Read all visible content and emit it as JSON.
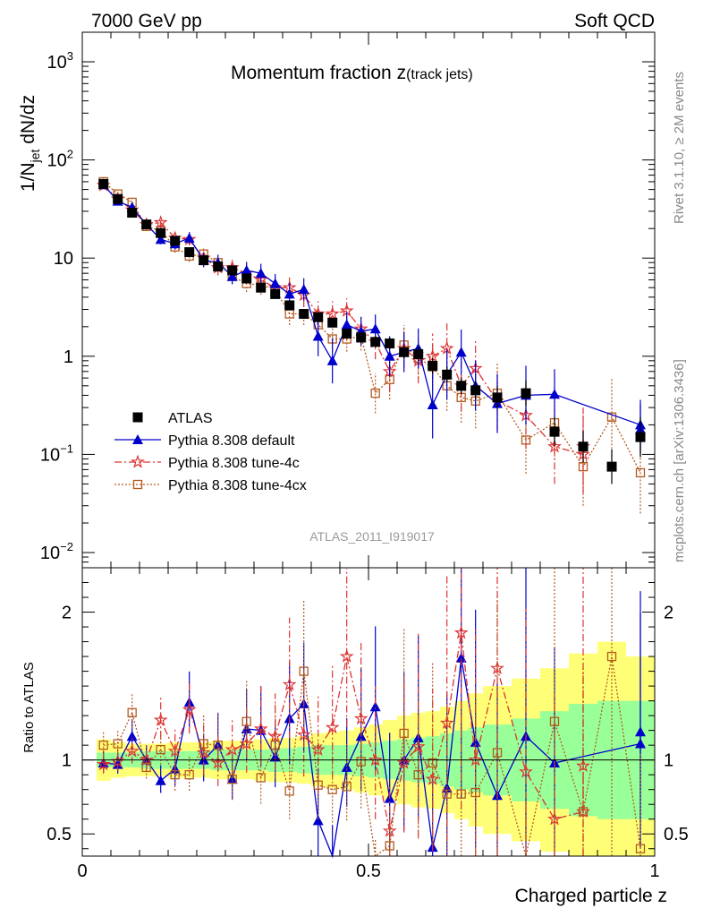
{
  "header": {
    "left": "7000 GeV pp",
    "right": "Soft QCD"
  },
  "side_labels": {
    "upper": "Rivet 3.1.10, ≥ 2M events",
    "lower": "mcplots.cern.ch [arXiv:1306.3436]"
  },
  "analysis_id": "ATLAS_2011_I919017",
  "colors": {
    "atlas": "#000000",
    "default": "#0000cc",
    "tune4c": "#dd3333",
    "tune4cx": "#b35a1f",
    "band_inner": "#99ff99",
    "band_outer": "#ffff77"
  },
  "chart_data": [
    {
      "type": "scatter",
      "title_main": "Momentum fraction z",
      "title_sub": "(track jets)",
      "ylabel_main": "1/N",
      "ylabel_sub": "jet",
      "ylabel_tail": " dN/dz",
      "yscale": "log",
      "ylim": [
        0.007,
        2000
      ],
      "xlim": [
        0,
        1
      ],
      "ytick_labels": [
        {
          "value": 1000,
          "base": "10",
          "exp": "3"
        },
        {
          "value": 100,
          "base": "10",
          "exp": "2"
        },
        {
          "value": 10,
          "base": "10",
          "exp": ""
        },
        {
          "value": 1,
          "base": "1",
          "exp": ""
        },
        {
          "value": 0.1,
          "base": "10",
          "exp": "−1"
        },
        {
          "value": 0.01,
          "base": "10",
          "exp": "−2"
        }
      ],
      "legend_position": "bottom-left",
      "x": [
        0.037,
        0.062,
        0.087,
        0.112,
        0.137,
        0.162,
        0.187,
        0.212,
        0.237,
        0.262,
        0.287,
        0.312,
        0.337,
        0.362,
        0.387,
        0.412,
        0.437,
        0.462,
        0.487,
        0.512,
        0.537,
        0.562,
        0.587,
        0.612,
        0.637,
        0.662,
        0.687,
        0.725,
        0.775,
        0.825,
        0.875,
        0.925,
        0.975
      ],
      "series": [
        {
          "name": "ATLAS",
          "key": "atlas",
          "marker": "square",
          "values": [
            57,
            40,
            29,
            22,
            18,
            15,
            11.5,
            9.5,
            8.2,
            7.5,
            6.2,
            5.0,
            4.3,
            3.3,
            2.7,
            2.5,
            2.2,
            1.7,
            1.55,
            1.4,
            1.35,
            1.1,
            1.05,
            0.8,
            0.65,
            0.5,
            0.45,
            0.38,
            0.42,
            0.17,
            0.12,
            0.075,
            0.15
          ],
          "err_factor": [
            1.05,
            1.05,
            1.05,
            1.05,
            1.05,
            1.05,
            1.06,
            1.06,
            1.07,
            1.07,
            1.08,
            1.08,
            1.09,
            1.1,
            1.1,
            1.1,
            1.12,
            1.12,
            1.14,
            1.14,
            1.15,
            1.16,
            1.18,
            1.2,
            1.2,
            1.22,
            1.25,
            1.3,
            1.35,
            1.4,
            1.45,
            1.5,
            1.6
          ]
        },
        {
          "name": "Pythia 8.308 default",
          "key": "default",
          "marker": "triangle",
          "values": [
            56,
            38,
            33,
            22,
            15.5,
            14,
            16,
            9.5,
            9,
            6.5,
            7.5,
            7,
            5.5,
            4.3,
            4.8,
            1.6,
            0.9,
            2.1,
            1.8,
            1.9,
            1.0,
            1.1,
            1.2,
            0.32,
            0.65,
            1.1,
            0.5,
            0.33,
            0.4,
            0.41,
            0.2,
            0.18
          ],
          "x_override": [
            0.037,
            0.062,
            0.087,
            0.112,
            0.137,
            0.162,
            0.187,
            0.212,
            0.237,
            0.262,
            0.287,
            0.312,
            0.337,
            0.362,
            0.387,
            0.412,
            0.437,
            0.462,
            0.487,
            0.512,
            0.537,
            0.562,
            0.587,
            0.612,
            0.637,
            0.662,
            0.687,
            0.725,
            0.775,
            0.825,
            0.975,
            0.975
          ],
          "err_factor": [
            1.08,
            1.08,
            1.1,
            1.1,
            1.12,
            1.15,
            1.15,
            1.18,
            1.2,
            1.2,
            1.22,
            1.25,
            1.25,
            1.3,
            1.3,
            1.6,
            1.7,
            1.35,
            1.4,
            1.4,
            1.6,
            1.6,
            1.6,
            2.2,
            1.8,
            1.7,
            1.8,
            2.0,
            2.0,
            1.8,
            1.8,
            1.8
          ]
        },
        {
          "name": "Pythia 8.308 tune-4c",
          "key": "tune4c",
          "marker": "star",
          "values": [
            55,
            40,
            31,
            22,
            23,
            16,
            15.5,
            10,
            8,
            8,
            7,
            6,
            5,
            5,
            4.2,
            2.7,
            2.7,
            2.9,
            1.9,
            1.4,
            0.7,
            1.2,
            0.9,
            1.0,
            1.2,
            0.5,
            0.75,
            0.35,
            0.25,
            0.12,
            0.1,
            0.12
          ],
          "x_override": [
            0.037,
            0.062,
            0.087,
            0.112,
            0.137,
            0.162,
            0.187,
            0.212,
            0.237,
            0.262,
            0.287,
            0.312,
            0.337,
            0.362,
            0.387,
            0.412,
            0.437,
            0.462,
            0.487,
            0.512,
            0.537,
            0.562,
            0.587,
            0.612,
            0.637,
            0.662,
            0.687,
            0.725,
            0.775,
            0.825,
            0.875,
            0.875
          ],
          "err_factor": [
            1.08,
            1.08,
            1.1,
            1.1,
            1.12,
            1.15,
            1.15,
            1.18,
            1.2,
            1.2,
            1.22,
            1.25,
            1.25,
            1.3,
            1.3,
            1.35,
            1.35,
            1.35,
            1.4,
            1.5,
            1.6,
            1.6,
            1.7,
            1.7,
            1.8,
            1.8,
            1.9,
            2.0,
            2.2,
            2.4,
            2.5,
            2.5
          ]
        },
        {
          "name": "Pythia 8.308 tune-4cx",
          "key": "tune4cx",
          "marker": "open-square",
          "values": [
            60,
            45,
            37,
            21,
            19,
            13,
            10.5,
            11,
            9,
            6.5,
            5.5,
            5.3,
            4.8,
            2.7,
            2.7,
            2.1,
            1.5,
            1.5,
            1.6,
            0.42,
            0.58,
            1.3,
            0.95,
            0.78,
            0.5,
            0.38,
            0.35,
            0.42,
            0.14,
            0.21,
            0.075,
            0.24,
            0.065
          ],
          "err_factor": [
            1.08,
            1.08,
            1.1,
            1.1,
            1.12,
            1.15,
            1.15,
            1.18,
            1.2,
            1.2,
            1.22,
            1.25,
            1.25,
            1.3,
            1.3,
            1.35,
            1.35,
            1.35,
            1.4,
            1.6,
            1.6,
            1.6,
            1.6,
            1.7,
            1.8,
            1.8,
            1.9,
            2.0,
            2.2,
            2.4,
            2.5,
            2.5,
            2.6
          ]
        }
      ]
    },
    {
      "type": "scatter",
      "ylabel": "Ratio to ATLAS",
      "xlabel": "Charged particle z",
      "ylim": [
        0.35,
        2.3
      ],
      "xlim": [
        0,
        1
      ],
      "yticks": [
        0.5,
        1,
        2
      ],
      "ytick_labels": [
        "0.5",
        "1",
        "2"
      ],
      "xticks": [
        0,
        0.5,
        1
      ],
      "xtick_labels": [
        "0",
        "0.5",
        "1"
      ],
      "band_edges": [
        0.025,
        0.05,
        0.075,
        0.1,
        0.125,
        0.15,
        0.175,
        0.2,
        0.225,
        0.25,
        0.275,
        0.3,
        0.325,
        0.35,
        0.375,
        0.4,
        0.425,
        0.45,
        0.475,
        0.5,
        0.525,
        0.55,
        0.575,
        0.6,
        0.625,
        0.65,
        0.675,
        0.7,
        0.75,
        0.8,
        0.85,
        0.9,
        0.95,
        1.0
      ],
      "band_inner": [
        0.05,
        0.05,
        0.05,
        0.06,
        0.06,
        0.06,
        0.06,
        0.06,
        0.07,
        0.07,
        0.07,
        0.07,
        0.08,
        0.08,
        0.09,
        0.1,
        0.1,
        0.1,
        0.11,
        0.12,
        0.13,
        0.14,
        0.15,
        0.16,
        0.18,
        0.2,
        0.22,
        0.24,
        0.28,
        0.33,
        0.38,
        0.4,
        0.4
      ],
      "band_outer": [
        0.14,
        0.12,
        0.11,
        0.11,
        0.11,
        0.12,
        0.12,
        0.12,
        0.13,
        0.13,
        0.13,
        0.14,
        0.15,
        0.15,
        0.16,
        0.18,
        0.19,
        0.2,
        0.22,
        0.24,
        0.27,
        0.3,
        0.32,
        0.33,
        0.36,
        0.4,
        0.45,
        0.5,
        0.55,
        0.62,
        0.72,
        0.8,
        0.7
      ],
      "series": [
        {
          "key": "default",
          "values": [
            0.98,
            0.97,
            1.16,
            1.0,
            0.86,
            0.94,
            1.39,
            1.0,
            1.1,
            0.87,
            1.21,
            1.2,
            1.02,
            1.28,
            1.38,
            0.59,
            0.33,
            0.95,
            1.16,
            1.36,
            0.74,
            1.0,
            1.15,
            0.41,
            0.81,
            1.69,
            1.12,
            0.76,
            1.16,
            0.98,
            1.11,
            1.19
          ]
        },
        {
          "key": "tune4c",
          "values": [
            0.97,
            0.99,
            1.06,
            1.0,
            1.27,
            1.06,
            1.34,
            1.05,
            0.98,
            1.07,
            1.11,
            1.21,
            1.16,
            1.51,
            1.17,
            1.07,
            1.22,
            1.7,
            1.28,
            1.0,
            0.52,
            0.98,
            1.09,
            0.87,
            1.25,
            1.86,
            1.0,
            1.62,
            0.92,
            0.6,
            0.65,
            0.96
          ]
        },
        {
          "key": "tune4cx",
          "values": [
            1.1,
            1.11,
            1.32,
            0.95,
            1.07,
            0.9,
            0.9,
            1.11,
            1.1,
            0.87,
            1.26,
            0.88,
            1.1,
            0.79,
            1.6,
            0.83,
            0.8,
            0.82,
            0.99,
            0.29,
            0.42,
            1.18,
            0.9,
            0.98,
            0.77,
            0.77,
            0.78,
            1.05,
            0.34,
            1.26,
            0.65,
            1.7,
            0.4
          ]
        }
      ]
    }
  ]
}
